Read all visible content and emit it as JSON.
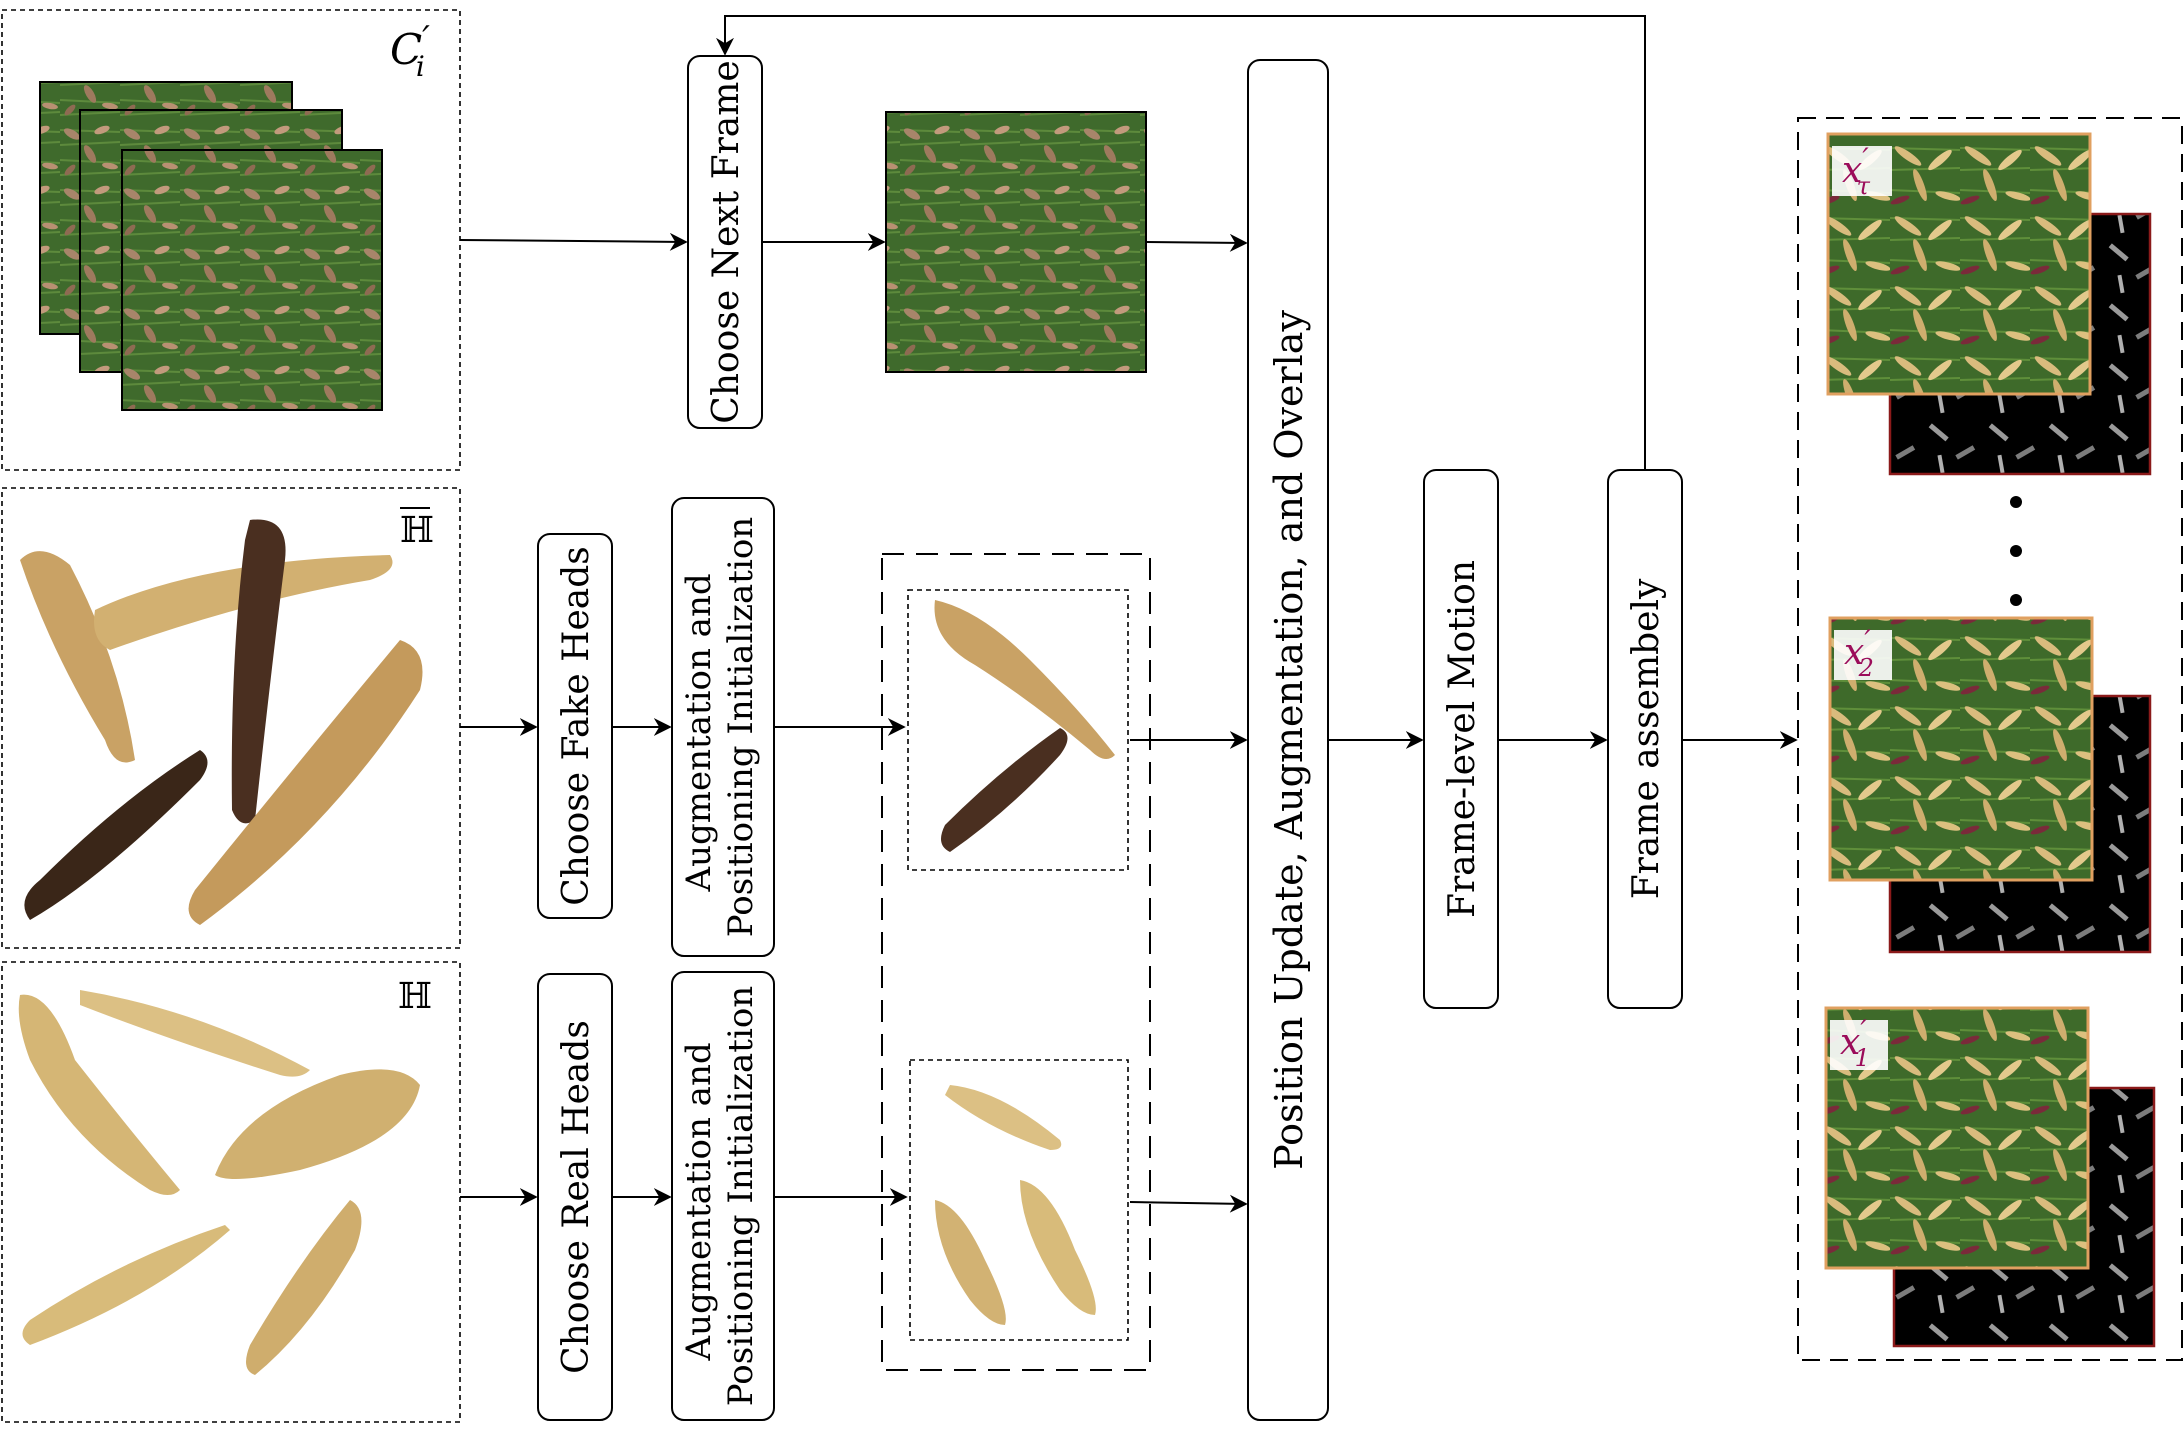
{
  "panels": {
    "background": {
      "symbol": "C",
      "subscript": "i",
      "prime": "′"
    },
    "fake_heads": {
      "symbol": "ℍ",
      "overline": true
    },
    "real_heads": {
      "symbol": "ℍ"
    }
  },
  "steps": {
    "choose_next_frame": "Choose Next Frame",
    "choose_fake_heads": "Choose Fake Heads",
    "choose_real_heads": "Choose Real Heads",
    "aug_pos_init_line1": "Augmentation and",
    "aug_pos_init_line2": "Positioning Initialization",
    "position_update": "Position Update, Augmentation, and Overlay",
    "frame_level_motion": "Frame-level Motion",
    "frame_assembly": "Frame assembely"
  },
  "outputs": [
    {
      "symbol": "x",
      "prime": "′",
      "subscript": "τ"
    },
    {
      "symbol": "x",
      "prime": "′",
      "subscript": "2"
    },
    {
      "symbol": "x",
      "prime": "′",
      "subscript": "1"
    }
  ],
  "colors": {
    "grass": "#3f6a2c",
    "leaf": "#a8856a",
    "head_light": "#d9bb7d",
    "head_dark": "#4a2f20",
    "output_border": "#e0a060",
    "mask_border": "#8b1a1a",
    "output_label": "#9b0c5a"
  }
}
